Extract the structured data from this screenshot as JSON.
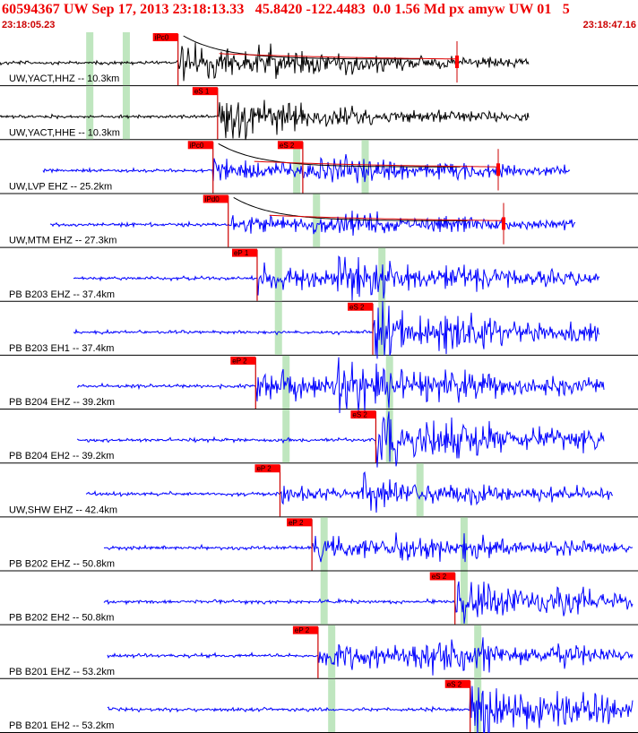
{
  "header": {
    "title": "60594367 UW Sep 17, 2013 23:18:13.33   45.8420 -122.4483  0.0 1.56 Md px amyw UW 01   5",
    "start_time": "23:18:05.23",
    "end_time": "23:18:47.16"
  },
  "colors": {
    "title": "#ee0000",
    "trace_short_period": "#000000",
    "trace_broadband": "#0000ff",
    "pick_line": "#cc0000",
    "pick_flag": "#ff0000",
    "window": "#bfe6bf",
    "coda": "#dd0000",
    "envelope": "#000000"
  },
  "traces": [
    {
      "label": "UW,YACT,HHZ -- 10.3km",
      "color": "black",
      "picks": [
        {
          "text": "iPc0",
          "t": 11.7
        }
      ],
      "windows": [
        5.9,
        8.3
      ],
      "coda": true
    },
    {
      "label": "UW,YACT,HHE -- 10.3km",
      "color": "black",
      "picks": [
        {
          "text": "eS 1",
          "t": 14.3
        }
      ],
      "windows": [
        5.9,
        8.3
      ],
      "coda": false
    },
    {
      "label": "UW,LVP EHZ -- 25.2km",
      "color": "blue",
      "picks": [
        {
          "text": "iPc0",
          "t": 14.0
        },
        {
          "text": "eS 2",
          "t": 19.9
        }
      ],
      "windows": [
        19.5,
        24.0
      ],
      "coda": true
    },
    {
      "label": "UW,MTM EHZ -- 27.3km",
      "color": "blue",
      "picks": [
        {
          "text": "iPd0",
          "t": 15.0
        }
      ],
      "windows": [
        20.8
      ],
      "coda": true
    },
    {
      "label": "PB B203 EHZ -- 37.4km",
      "color": "blue",
      "picks": [
        {
          "text": "eP 1",
          "t": 16.9
        }
      ],
      "windows": [
        18.3,
        25.1
      ],
      "coda": false
    },
    {
      "label": "PB B203 EH1 -- 37.4km",
      "color": "blue",
      "picks": [
        {
          "text": "eS 2",
          "t": 24.5
        }
      ],
      "windows": [
        18.3,
        25.1
      ],
      "coda": false
    },
    {
      "label": "PB B204 EHZ -- 39.2km",
      "color": "blue",
      "picks": [
        {
          "text": "eP 2",
          "t": 16.8
        }
      ],
      "windows": [
        18.8,
        25.6
      ],
      "coda": false
    },
    {
      "label": "PB B204 EH2 -- 39.2km",
      "color": "blue",
      "picks": [
        {
          "text": "eS 2",
          "t": 24.7
        }
      ],
      "windows": [
        18.8,
        25.6
      ],
      "coda": false
    },
    {
      "label": "UW,SHW EHZ -- 42.4km",
      "color": "blue",
      "picks": [
        {
          "text": "eP 2",
          "t": 18.4
        }
      ],
      "windows": [
        27.6
      ],
      "coda": false
    },
    {
      "label": "PB B202 EHZ -- 50.8km",
      "color": "blue",
      "picks": [
        {
          "text": "eP 2",
          "t": 20.5
        }
      ],
      "windows": [
        21.3,
        30.5
      ],
      "coda": false
    },
    {
      "label": "PB B202 EH2 -- 50.8km",
      "color": "blue",
      "picks": [
        {
          "text": "eS 2",
          "t": 29.9
        }
      ],
      "windows": [
        21.3,
        30.5
      ],
      "coda": false
    },
    {
      "label": "PB B201 EHZ -- 53.2km",
      "color": "blue",
      "picks": [
        {
          "text": "eP 2",
          "t": 20.9
        }
      ],
      "windows": [
        21.8,
        31.4
      ],
      "coda": false
    },
    {
      "label": "PB B201 EH2 -- 53.2km",
      "color": "blue",
      "picks": [
        {
          "text": "eS 2",
          "t": 30.9
        }
      ],
      "windows": [
        21.8,
        31.4
      ],
      "coda": false
    }
  ]
}
